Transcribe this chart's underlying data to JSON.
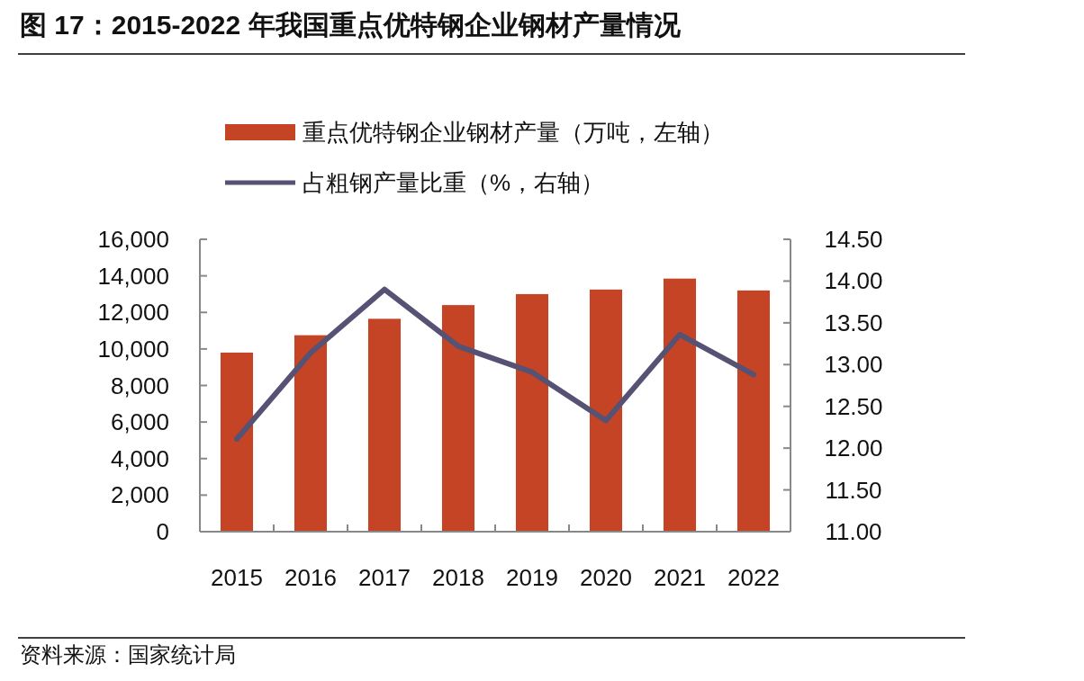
{
  "chart_data": {
    "type": "bar",
    "title": "图 17：2015-2022 年我国重点优特钢企业钢材产量情况",
    "categories": [
      "2015",
      "2016",
      "2017",
      "2018",
      "2019",
      "2020",
      "2021",
      "2022"
    ],
    "series": [
      {
        "name": "重点优特钢企业钢材产量（万吨，左轴）",
        "color": "#c54426",
        "values": [
          9800,
          10750,
          11650,
          12400,
          13000,
          13250,
          13850,
          13200
        ]
      },
      {
        "name": "占粗钢产量比重（%，右轴）",
        "type": "line",
        "axis": "y2",
        "color": "#565273",
        "values": [
          12.11,
          13.14,
          13.9,
          13.22,
          12.91,
          12.33,
          13.36,
          12.88
        ]
      }
    ],
    "ylim": [
      0,
      16000
    ],
    "yticks": [
      {
        "value": 0,
        "label": "0"
      },
      {
        "value": 2000,
        "label": "2,000"
      },
      {
        "value": 4000,
        "label": "4,000"
      },
      {
        "value": 6000,
        "label": "6,000"
      },
      {
        "value": 8000,
        "label": "8,000"
      },
      {
        "value": 10000,
        "label": "10,000"
      },
      {
        "value": 12000,
        "label": "12,000"
      },
      {
        "value": 14000,
        "label": "14,000"
      },
      {
        "value": 16000,
        "label": "16,000"
      }
    ],
    "y2lim": [
      11,
      14.5
    ],
    "y2ticks": [
      {
        "value": 11,
        "label": "11.00"
      },
      {
        "value": 11.5,
        "label": "11.50"
      },
      {
        "value": 12,
        "label": "12.00"
      },
      {
        "value": 12.5,
        "label": "12.50"
      },
      {
        "value": 13,
        "label": "13.00"
      },
      {
        "value": 13.5,
        "label": "13.50"
      },
      {
        "value": 14,
        "label": "14.00"
      },
      {
        "value": 14.5,
        "label": "14.50"
      }
    ],
    "grid": false,
    "legend": "top",
    "marker": "none",
    "line_style": "solid",
    "annotations": [
      "资料来源：国家统计局"
    ]
  }
}
